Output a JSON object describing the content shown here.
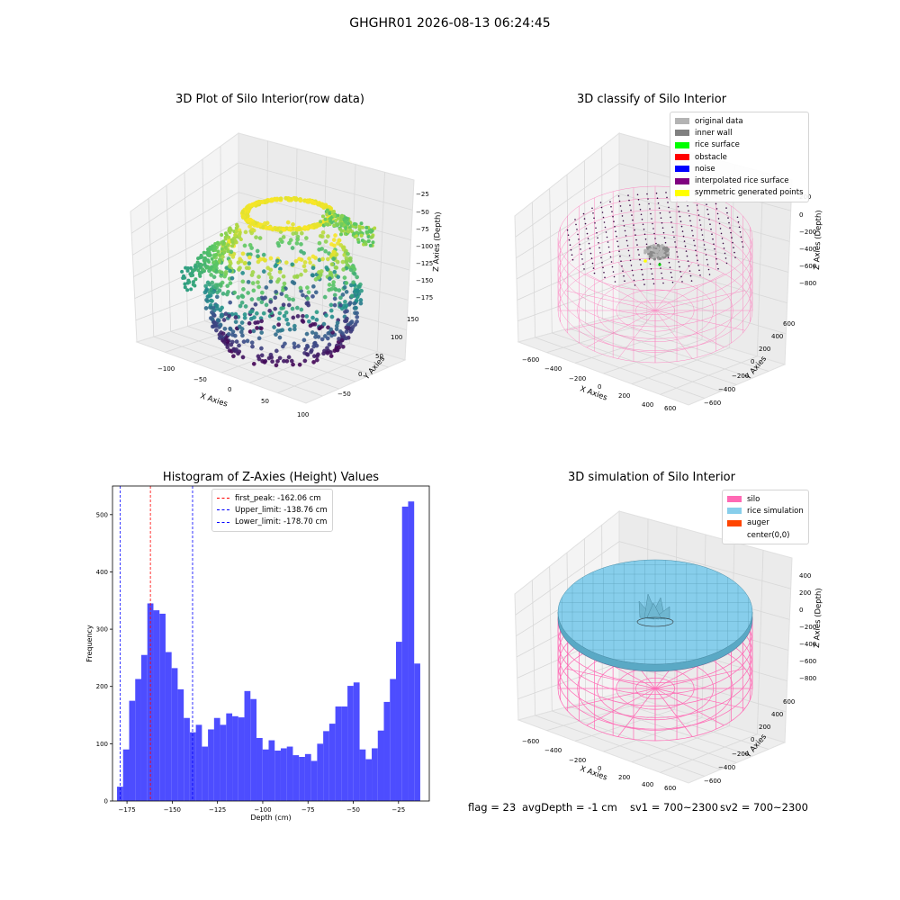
{
  "figure": {
    "suptitle": "GHGHR01 2026-08-13 06:24:45"
  },
  "panels": {
    "raw": {
      "title": "3D Plot of Silo Interior(row data)",
      "xlabel": "X Axies",
      "ylabel": "Y Axies",
      "zlabel": "Z Axies (Depth)",
      "x_ticks": [
        "−100",
        "−50",
        "0",
        "50",
        "100"
      ],
      "y_ticks": [
        "−50",
        "0",
        "50",
        "100",
        "150"
      ],
      "z_ticks": [
        "−25",
        "−50",
        "−75",
        "−100",
        "−125",
        "−150",
        "−175"
      ]
    },
    "classify": {
      "title": "3D classify of Silo Interior",
      "xlabel": "X Axies",
      "ylabel": "Y Axies",
      "zlabel": "Z Axies (Depth)",
      "x_ticks": [
        "−600",
        "−400",
        "−200",
        "0",
        "200",
        "400",
        "600"
      ],
      "y_ticks": [
        "−600",
        "−400",
        "−200",
        "0",
        "200",
        "400",
        "600"
      ],
      "z_ticks": [
        "200",
        "0",
        "−200",
        "−400",
        "−600",
        "−800"
      ],
      "legend": [
        {
          "label": "original data",
          "color": "#b3b3b3"
        },
        {
          "label": "inner wall",
          "color": "#808080"
        },
        {
          "label": "rice surface",
          "color": "#00ff00"
        },
        {
          "label": "obstacle",
          "color": "#ff0000"
        },
        {
          "label": "noise",
          "color": "#0000ff"
        },
        {
          "label": "interpolated rice surface",
          "color": "#800080"
        },
        {
          "label": "symmetric generated points",
          "color": "#ffff00"
        }
      ]
    },
    "simulation": {
      "title": "3D simulation of Silo Interior",
      "xlabel": "X Axies",
      "ylabel": "Y Axies",
      "zlabel": "Z Axies (Depth)",
      "x_ticks": [
        "−600",
        "−400",
        "−200",
        "0",
        "200",
        "400",
        "600"
      ],
      "y_ticks": [
        "−600",
        "−400",
        "−200",
        "0",
        "200",
        "400",
        "600"
      ],
      "z_ticks": [
        "400",
        "200",
        "0",
        "−200",
        "−400",
        "−600",
        "−800"
      ],
      "legend": [
        {
          "label": "silo",
          "color": "#ff69b4"
        },
        {
          "label": "rice simulation",
          "color": "#87ceeb"
        },
        {
          "label": "auger",
          "color": "#ff4500"
        },
        {
          "label": "center(0,0)",
          "color": ""
        }
      ]
    },
    "footer": {
      "flag": "flag = 23",
      "avg_depth": "avgDepth = -1 cm",
      "sv1": "sv1 = 700~2300",
      "sv2": "sv2 = 700~2300"
    }
  },
  "chart_data": [
    {
      "type": "histogram",
      "title": "Histogram of Z-Axies (Height) Values",
      "xlabel": "Depth (cm)",
      "ylabel": "Frequency",
      "xlim": [
        -183,
        -8
      ],
      "ylim": [
        0,
        550
      ],
      "x_ticks": [
        -175,
        -150,
        -125,
        -100,
        -75,
        -50,
        -25
      ],
      "x_tick_labels": [
        "−175",
        "−150",
        "−125",
        "−100",
        "−75",
        "−50",
        "−25"
      ],
      "y_ticks": [
        0,
        100,
        200,
        300,
        400,
        500
      ],
      "y_tick_labels": [
        "0",
        "100",
        "200",
        "300",
        "400",
        "500"
      ],
      "bar_color": "#4d4dff",
      "bin_start": -180.5,
      "bin_width": 3.35,
      "values": [
        25,
        90,
        175,
        213,
        255,
        345,
        333,
        327,
        260,
        232,
        195,
        145,
        120,
        133,
        95,
        125,
        145,
        133,
        153,
        148,
        146,
        192,
        178,
        110,
        90,
        106,
        88,
        92,
        95,
        80,
        77,
        82,
        70,
        100,
        122,
        135,
        165,
        165,
        201,
        207,
        90,
        73,
        92,
        123,
        173,
        213,
        278,
        514,
        523,
        240
      ],
      "vlines": [
        {
          "name": "first_peak",
          "label": "first_peak: -162.06 cm",
          "x": -162.06,
          "color": "#ff0000"
        },
        {
          "name": "upper_limit",
          "label": "Upper_limit: -138.76 cm",
          "x": -138.76,
          "color": "#0000ff"
        },
        {
          "name": "lower_limit",
          "label": "Lower_limit: -178.70 cm",
          "x": -178.7,
          "color": "#0000ff"
        }
      ],
      "legend_position": "upper-center"
    }
  ]
}
